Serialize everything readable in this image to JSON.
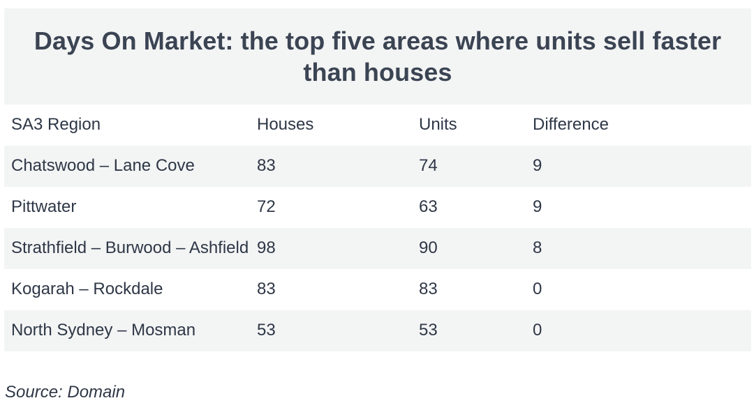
{
  "chart_data": {
    "type": "table",
    "title": "Days On Market: the top five areas where units sell faster than houses",
    "columns": [
      "SA3 Region",
      "Houses",
      "Units",
      "Difference"
    ],
    "rows": [
      [
        "Chatswood – Lane Cove",
        "83",
        "74",
        "9"
      ],
      [
        "Pittwater",
        "72",
        "63",
        "9"
      ],
      [
        "Strathfield – Burwood – Ashfield",
        "98",
        "90",
        "8"
      ],
      [
        "Kogarah – Rockdale",
        "83",
        "83",
        "0"
      ],
      [
        "North Sydney – Mosman",
        "53",
        "53",
        "0"
      ]
    ],
    "source": "Source: Domain"
  },
  "colors": {
    "header_background": "#f3f4f4",
    "stripe_background": "#f3f4f4",
    "text": "#2e3746"
  }
}
